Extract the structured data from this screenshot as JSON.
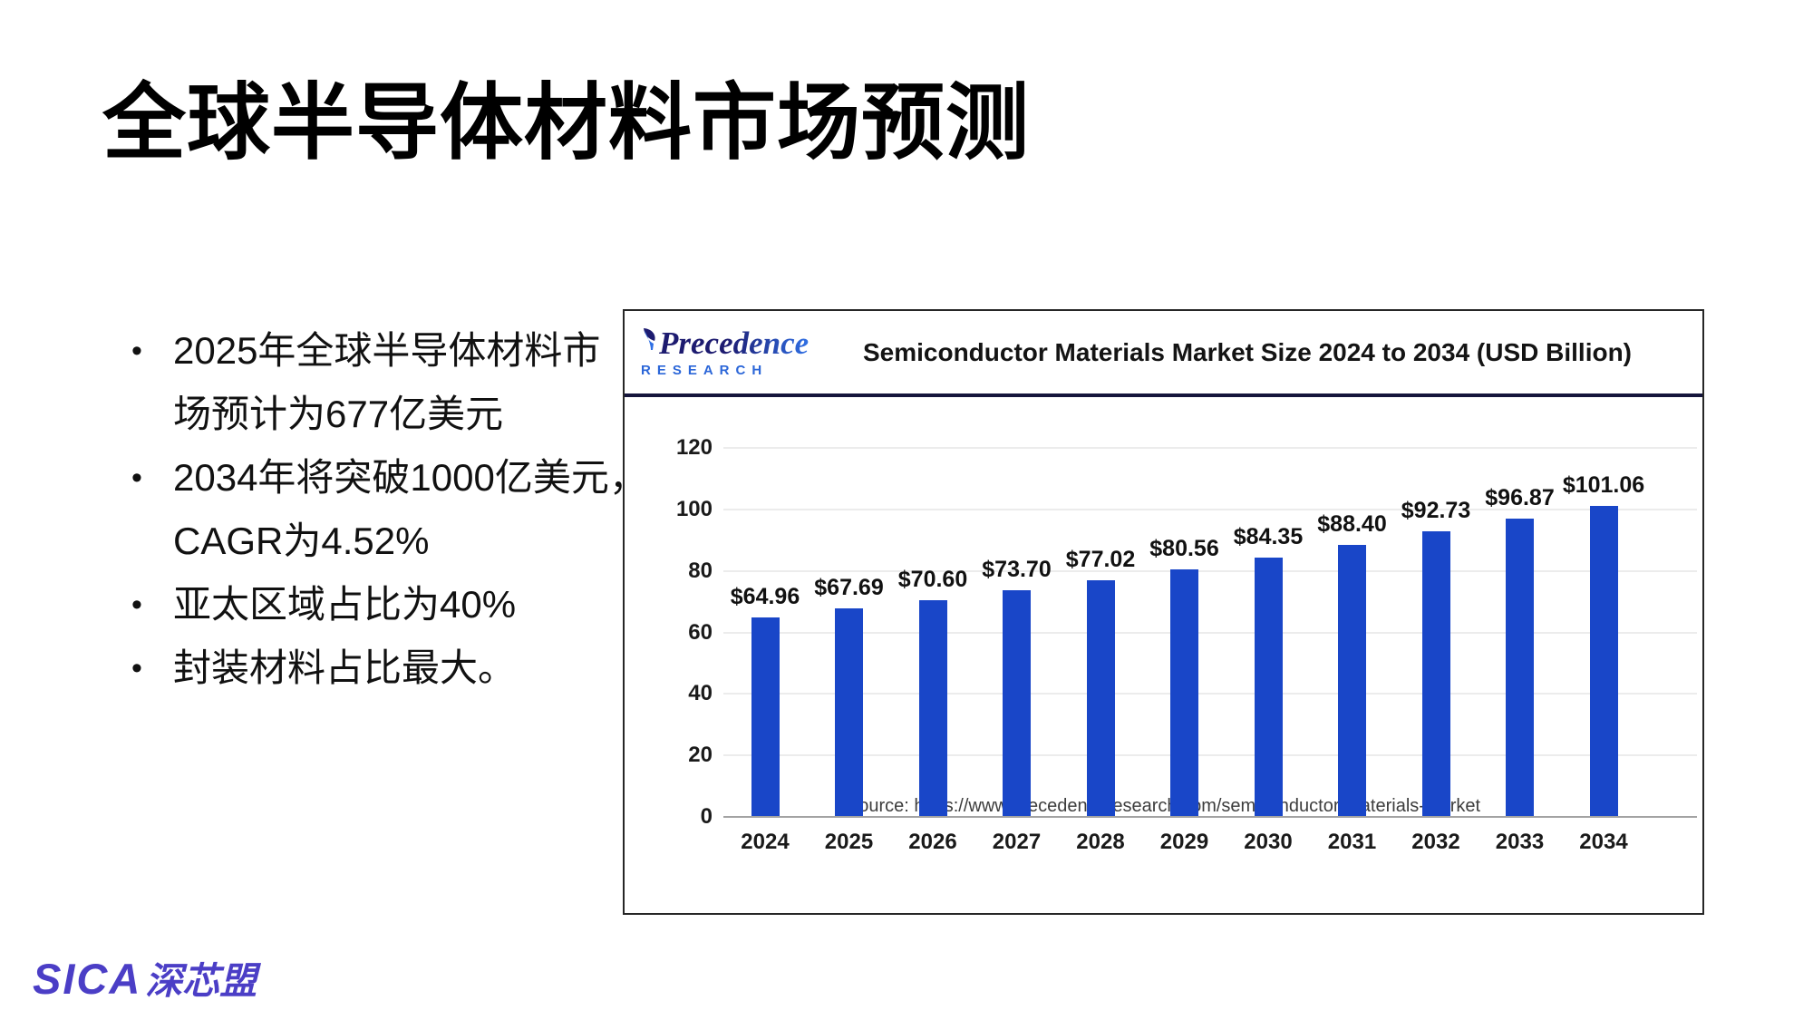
{
  "slide": {
    "title": "全球半导体材料市场预测",
    "bullets": [
      {
        "lines": [
          "2025年全球半导体材料市",
          "场预计为677亿美元"
        ]
      },
      {
        "lines": [
          "2034年将突破1000亿美元，",
          "CAGR为4.52%"
        ]
      },
      {
        "lines": [
          "亚太区域占比为40%"
        ]
      },
      {
        "lines": [
          "封装材料占比最大。"
        ]
      }
    ],
    "bullet_glyph": "•",
    "footer_logo": {
      "latin": "SICA",
      "cjk": "深芯盟",
      "color": "#4b3ec6"
    }
  },
  "chart_panel": {
    "logo": {
      "name": "precedence-research-logo",
      "line1": "Precedence",
      "line2": "RESEARCH",
      "color_dark": "#1d1b70",
      "color_blue": "#2f6fe4"
    },
    "title": "Semiconductor Materials Market Size 2024 to 2034 (USD Billion)",
    "source": "Source: https://www.precedenceresearch.com/semiconductor-materials-market"
  },
  "chart_data": {
    "type": "bar",
    "title": "Semiconductor Materials Market Size 2024 to 2034 (USD Billion)",
    "categories": [
      "2024",
      "2025",
      "2026",
      "2027",
      "2028",
      "2029",
      "2030",
      "2031",
      "2032",
      "2033",
      "2034"
    ],
    "values": [
      64.96,
      67.69,
      70.6,
      73.7,
      77.02,
      80.56,
      84.35,
      88.4,
      92.73,
      96.87,
      101.06
    ],
    "value_labels": [
      "$64.96",
      "$67.69",
      "$70.60",
      "$73.70",
      "$77.02",
      "$80.56",
      "$84.35",
      "$88.40",
      "$92.73",
      "$96.87",
      "$101.06"
    ],
    "xlabel": "",
    "ylabel": "",
    "ylim": [
      0,
      120
    ],
    "yticks": [
      0,
      20,
      40,
      60,
      80,
      100,
      120
    ],
    "grid": true,
    "legend": "none",
    "bar_color": "#1946c8",
    "source": "Source: https://www.precedenceresearch.com/semiconductor-materials-market"
  }
}
